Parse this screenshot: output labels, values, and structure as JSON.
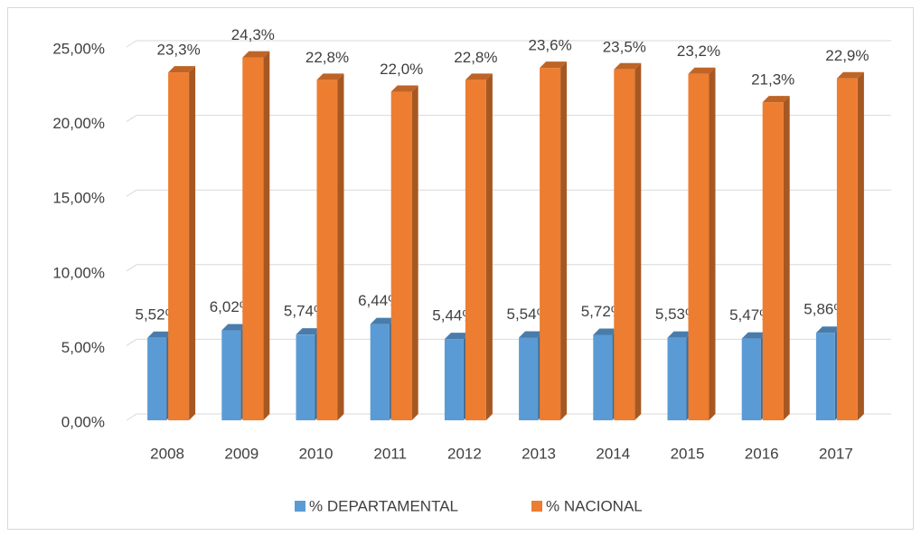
{
  "chart_data": {
    "type": "bar3d",
    "categories": [
      "2008",
      "2009",
      "2010",
      "2011",
      "2012",
      "2013",
      "2014",
      "2015",
      "2016",
      "2017"
    ],
    "series": [
      {
        "name": "% DEPARTAMENTAL",
        "color": "#5b9bd5",
        "values": [
          5.52,
          6.02,
          5.74,
          6.44,
          5.44,
          5.54,
          5.72,
          5.53,
          5.47,
          5.86
        ],
        "value_labels": [
          "5,52%",
          "6,02%",
          "5,74%",
          "6,44%",
          "5,44%",
          "5,54%",
          "5,72%",
          "5,53%",
          "5,47%",
          "5,86%"
        ]
      },
      {
        "name": "% NACIONAL",
        "color": "#ed7d31",
        "values": [
          23.3,
          24.3,
          22.8,
          22.0,
          22.8,
          23.6,
          23.5,
          23.2,
          21.3,
          22.9
        ],
        "value_labels": [
          "23,3%",
          "24,3%",
          "22,8%",
          "22,0%",
          "22,8%",
          "23,6%",
          "23,5%",
          "23,2%",
          "21,3%",
          "22,9%"
        ]
      }
    ],
    "ylim": [
      0,
      25
    ],
    "yticks": [
      {
        "value": 0,
        "label": "0,00%"
      },
      {
        "value": 5,
        "label": "5,00%"
      },
      {
        "value": 10,
        "label": "10,00%"
      },
      {
        "value": 15,
        "label": "15,00%"
      },
      {
        "value": 20,
        "label": "20,00%"
      },
      {
        "value": 25,
        "label": "25,00%"
      }
    ],
    "grid": true,
    "legend": "bottom"
  }
}
